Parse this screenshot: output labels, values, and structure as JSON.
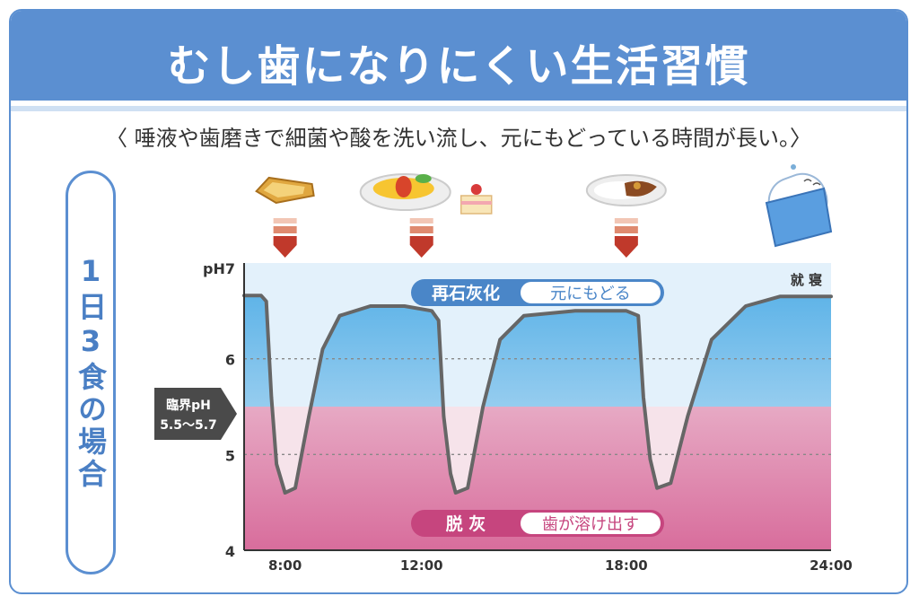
{
  "title": "むし歯になりにくい生活習慣",
  "subtitle": "〈 唾液や歯磨きで細菌や酸を洗い流し、元にもどっている時間が長い。〉",
  "side_label": "1日3食の場合",
  "critical": {
    "label": "臨界pH",
    "range": "5.5〜5.7"
  },
  "remineral": {
    "label": "再石灰化",
    "desc": "元にもどる"
  },
  "demineral": {
    "label": "脱 灰",
    "desc": "歯が溶け出す"
  },
  "bedtime_label": "就 寝",
  "meals": [
    {
      "name": "toast-icon",
      "time": 8.0
    },
    {
      "name": "omelette-rice-icon",
      "time": 12.0
    },
    {
      "name": "curry-icon",
      "time": 18.0
    }
  ],
  "sleep_icon": "sleeping-tooth-icon",
  "colors": {
    "header": "#5b8fd1",
    "remineral_fill": "#7cc3ec",
    "demineral_fill": "#e6a7c3",
    "curve": "#666666",
    "arrow": "#c0392b"
  },
  "chart_data": {
    "type": "line",
    "title": "",
    "xlabel": "",
    "ylabel": "pH7",
    "xlim": [
      6.8,
      24.0
    ],
    "ylim": [
      4,
      7
    ],
    "x_ticks": [
      8,
      12,
      18,
      24
    ],
    "x_tick_labels": [
      "8:00",
      "12:00",
      "18:00",
      "24:00"
    ],
    "y_ticks": [
      4,
      5,
      6,
      7
    ],
    "y_tick_labels": [
      "4",
      "5",
      "6",
      "pH7"
    ],
    "critical_ph": 5.5,
    "dashed_gridlines": [
      5,
      6
    ],
    "series": [
      {
        "values": [
          [
            6.8,
            6.66
          ],
          [
            7.3,
            6.66
          ],
          [
            7.45,
            6.6
          ],
          [
            7.6,
            5.6
          ],
          [
            7.75,
            4.9
          ],
          [
            8.0,
            4.6
          ],
          [
            8.3,
            4.65
          ],
          [
            8.7,
            5.4
          ],
          [
            9.1,
            6.1
          ],
          [
            9.6,
            6.45
          ],
          [
            10.5,
            6.55
          ],
          [
            11.5,
            6.55
          ],
          [
            12.3,
            6.5
          ],
          [
            12.5,
            6.4
          ],
          [
            12.65,
            5.4
          ],
          [
            12.85,
            4.8
          ],
          [
            13.0,
            4.6
          ],
          [
            13.35,
            4.65
          ],
          [
            13.8,
            5.5
          ],
          [
            14.3,
            6.2
          ],
          [
            15.0,
            6.45
          ],
          [
            16.5,
            6.5
          ],
          [
            18.0,
            6.5
          ],
          [
            18.35,
            6.45
          ],
          [
            18.5,
            5.6
          ],
          [
            18.7,
            4.95
          ],
          [
            18.9,
            4.65
          ],
          [
            19.3,
            4.7
          ],
          [
            19.8,
            5.4
          ],
          [
            20.5,
            6.2
          ],
          [
            21.5,
            6.55
          ],
          [
            22.5,
            6.65
          ],
          [
            24.0,
            6.65
          ]
        ]
      }
    ]
  }
}
